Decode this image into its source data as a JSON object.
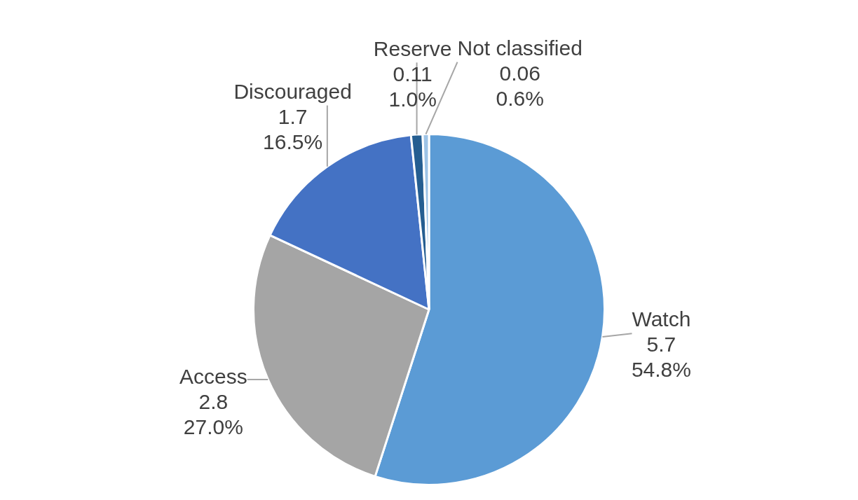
{
  "chart_data": {
    "type": "pie",
    "categories": [
      "Watch",
      "Access",
      "Discouraged",
      "Reserve",
      "Not classified"
    ],
    "values": [
      5.7,
      2.8,
      1.7,
      0.11,
      0.06
    ],
    "value_labels": [
      "5.7\n54.8%",
      "2.8\n27.0%",
      "1.7\n16.5%",
      "0.11\n1.0%",
      "0.06\n0.6%"
    ],
    "colors": [
      "#5b9bd5",
      "#a5a5a5",
      "#4472c4",
      "#255e91",
      "#9dc3e6"
    ],
    "legend": false
  }
}
